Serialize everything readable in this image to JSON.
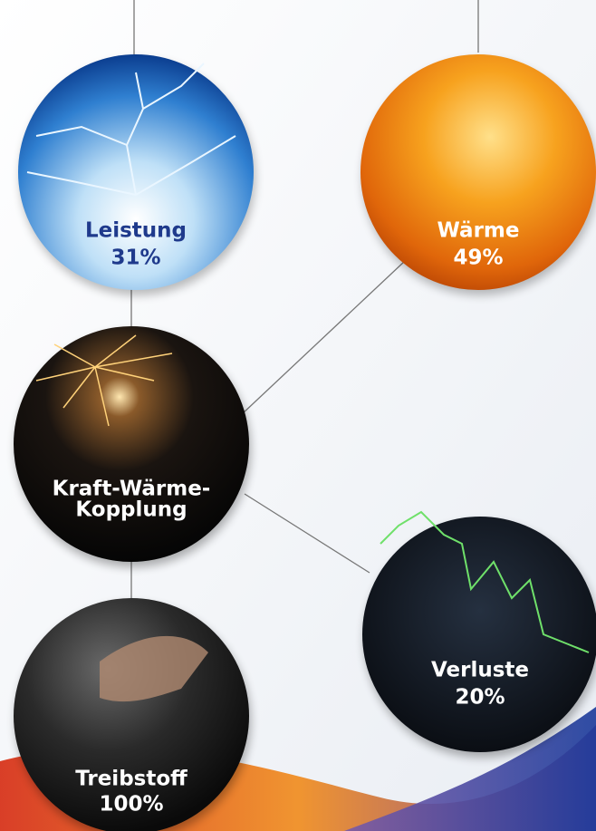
{
  "nodes": [
    {
      "label": [
        "Leistung"
      ],
      "value": "31%"
    },
    {
      "label": [
        "Wärme"
      ],
      "value": "49%"
    },
    {
      "label": [
        "Kraft-Wärme-",
        "Kopplung"
      ]
    },
    {
      "label": [
        "Verluste"
      ],
      "value": "20%"
    },
    {
      "label": [
        "Treibstoff"
      ],
      "value": "100%"
    }
  ]
}
